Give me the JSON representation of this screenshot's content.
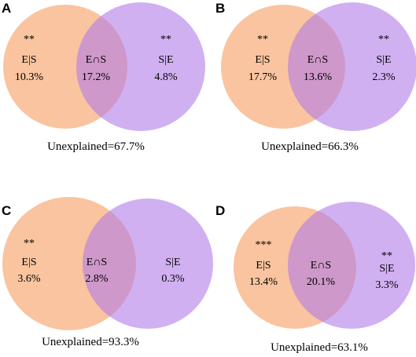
{
  "colors": {
    "left_circle": "#f6a46b",
    "right_circle": "#b07ce8",
    "overlap": "#d9868d"
  },
  "panels": [
    {
      "id": "A",
      "label": "A",
      "left": {
        "label": "E|S",
        "value": "10.3%",
        "stars": "**"
      },
      "middle": {
        "label": "E∩S",
        "value": "17.2%"
      },
      "right": {
        "label": "S|E",
        "value": "4.8%",
        "stars": "**"
      },
      "unexplained": "Unexplained=67.7%"
    },
    {
      "id": "B",
      "label": "B",
      "left": {
        "label": "E|S",
        "value": "17.7%",
        "stars": "**"
      },
      "middle": {
        "label": "E∩S",
        "value": "13.6%"
      },
      "right": {
        "label": "S|E",
        "value": "2.3%",
        "stars": "**"
      },
      "unexplained": "Unexplained=66.3%"
    },
    {
      "id": "C",
      "label": "C",
      "left": {
        "label": "E|S",
        "value": "3.6%",
        "stars": "**"
      },
      "middle": {
        "label": "E∩S",
        "value": "2.8%"
      },
      "right": {
        "label": "S|E",
        "value": "0.3%",
        "stars": ""
      },
      "unexplained": "Unexplained=93.3%"
    },
    {
      "id": "D",
      "label": "D",
      "left": {
        "label": "E|S",
        "value": "13.4%",
        "stars": "***"
      },
      "middle": {
        "label": "E∩S",
        "value": "20.1%"
      },
      "right": {
        "label": "S|E",
        "value": "3.3%",
        "stars": "**"
      },
      "unexplained": "Unexplained=63.1%"
    }
  ]
}
